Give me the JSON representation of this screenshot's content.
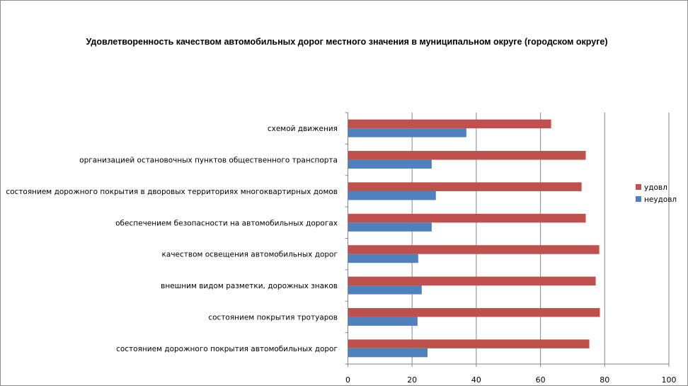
{
  "chart_data": {
    "type": "bar",
    "orientation": "horizontal",
    "title": "Удовлетворенность качеством автомобильных дорог местного значения в муниципальном округе (городском округе)",
    "xlabel": "",
    "ylabel": "",
    "xlim": [
      0,
      100
    ],
    "x_ticks": [
      "0",
      "20",
      "40",
      "60",
      "80",
      "100"
    ],
    "grid": true,
    "legend_position": "right",
    "categories": [
      "схемой движения",
      "организацией остановочных пунктов общественного транспорта",
      "состоянием дорожного покрытия в дворовых территориях многоквартирных домов",
      "обеспечением безопасности на автомобильных дорогах",
      "качеством освещения автомобильных дорог",
      "внешним видом разметки, дорожных знаков",
      "состоянием покрытия тротуаров",
      "состоянием дорожного покрытия автомобильных дорог"
    ],
    "series": [
      {
        "name": "удовл",
        "color": "#C0504D",
        "values": [
          63.3,
          74.1,
          72.8,
          74.1,
          78.3,
          77.2,
          78.5,
          75.2
        ]
      },
      {
        "name": "неудовл",
        "color": "#4F81BD",
        "values": [
          36.9,
          26.1,
          27.4,
          26.1,
          21.9,
          23.0,
          21.7,
          24.8
        ]
      }
    ]
  }
}
